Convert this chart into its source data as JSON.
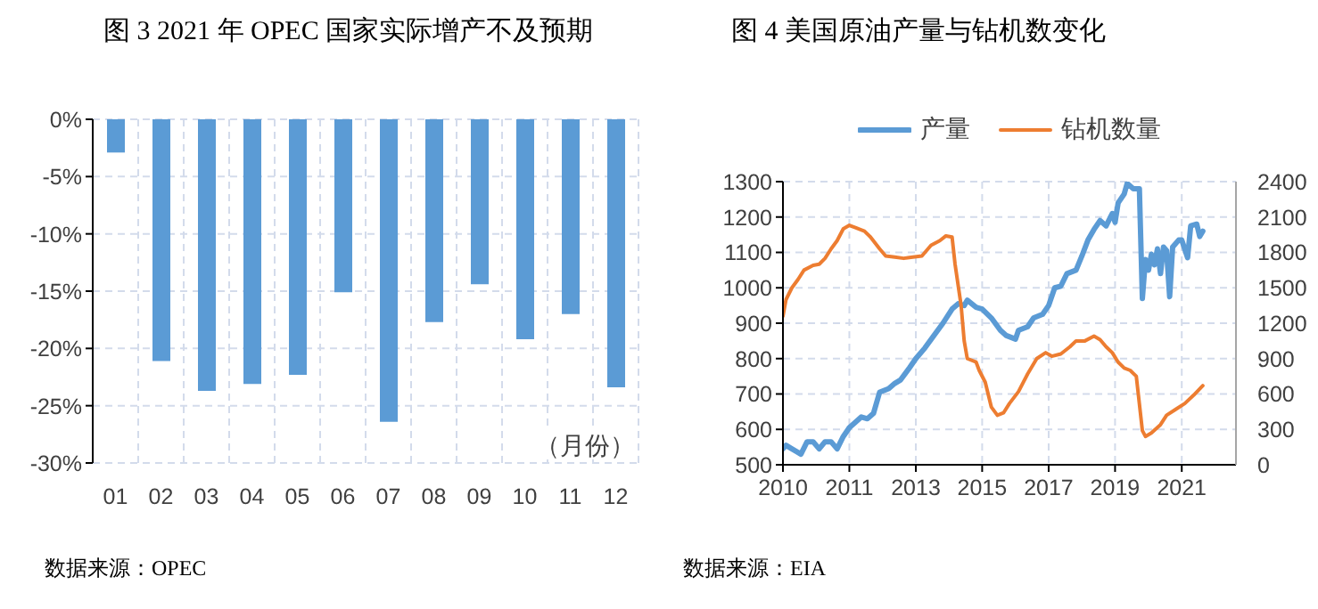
{
  "chart_data": [
    {
      "type": "bar",
      "title": "图 3 2021 年 OPEC 国家实际增产不及预期",
      "xlabel": "（月份）",
      "categories": [
        "01",
        "02",
        "03",
        "04",
        "05",
        "06",
        "07",
        "08",
        "09",
        "10",
        "11",
        "12"
      ],
      "values": [
        -2.9,
        -21.1,
        -23.7,
        -23.1,
        -22.3,
        -15.1,
        -26.4,
        -17.7,
        -14.4,
        -19.2,
        -17.0,
        -23.4
      ],
      "color": "#5b9bd5",
      "ylim": [
        -30,
        0
      ],
      "yticks": [
        {
          "value": 0,
          "label": "0%"
        },
        {
          "value": -5,
          "label": "-5%"
        },
        {
          "value": -10,
          "label": "-10%"
        },
        {
          "value": -15,
          "label": "-15%"
        },
        {
          "value": -20,
          "label": "-20%"
        },
        {
          "value": -25,
          "label": "-25%"
        },
        {
          "value": -30,
          "label": "-30%"
        }
      ],
      "grid": true,
      "annotations": [
        "数据来源：OPEC"
      ]
    },
    {
      "type": "line",
      "title": "图 4 美国原油产量与钻机数变化",
      "legend": "top",
      "grid": true,
      "xlim": [
        "2010-01",
        "2022-07"
      ],
      "xticks": [
        {
          "value": "2010-01",
          "label": "2010"
        },
        {
          "value": "2011-11",
          "label": "2011"
        },
        {
          "value": "2013-09",
          "label": "2013"
        },
        {
          "value": "2015-07",
          "label": "2015"
        },
        {
          "value": "2017-05",
          "label": "2017"
        },
        {
          "value": "2019-03",
          "label": "2019"
        },
        {
          "value": "2021-01",
          "label": "2021"
        }
      ],
      "ylim": [
        500,
        1300
      ],
      "yticks": [
        500,
        600,
        700,
        800,
        900,
        1000,
        1100,
        1200,
        1300
      ],
      "y2lim": [
        0,
        2400
      ],
      "y2ticks": [
        0,
        300,
        600,
        900,
        1200,
        1500,
        1800,
        2100,
        2400
      ],
      "series": [
        {
          "name": "产量",
          "color": "#5b9bd5",
          "x": [
            "2010-01",
            "2010-02",
            "2010-04",
            "2010-07",
            "2010-09",
            "2010-11",
            "2011-01",
            "2011-03",
            "2011-05",
            "2011-07",
            "2011-09",
            "2011-11",
            "2012-01",
            "2012-03",
            "2012-05",
            "2012-07",
            "2012-09",
            "2012-12",
            "2013-02",
            "2013-04",
            "2013-07",
            "2013-09",
            "2013-12",
            "2014-03",
            "2014-06",
            "2014-09",
            "2014-11",
            "2015-01",
            "2015-02",
            "2015-05",
            "2015-07",
            "2015-10",
            "2016-01",
            "2016-03",
            "2016-06",
            "2016-07",
            "2016-10",
            "2016-12",
            "2017-03",
            "2017-05",
            "2017-07",
            "2017-09",
            "2017-11",
            "2018-02",
            "2018-04",
            "2018-06",
            "2018-08",
            "2018-10",
            "2018-12",
            "2019-02",
            "2019-03",
            "2019-04",
            "2019-06",
            "2019-07",
            "2019-09",
            "2019-11",
            "2019-12",
            "2020-01",
            "2020-02",
            "2020-03",
            "2020-04",
            "2020-05",
            "2020-06",
            "2020-07",
            "2020-08",
            "2020-09",
            "2020-10",
            "2020-12",
            "2021-01",
            "2021-03",
            "2021-04",
            "2021-06",
            "2021-07",
            "2021-08"
          ],
          "values": [
            545,
            555,
            545,
            530,
            565,
            565,
            545,
            565,
            565,
            545,
            580,
            605,
            620,
            635,
            630,
            645,
            705,
            715,
            730,
            740,
            775,
            800,
            830,
            865,
            900,
            940,
            955,
            950,
            965,
            945,
            940,
            915,
            880,
            865,
            855,
            880,
            890,
            915,
            925,
            950,
            1000,
            1005,
            1040,
            1050,
            1090,
            1135,
            1165,
            1190,
            1175,
            1210,
            1185,
            1240,
            1265,
            1295,
            1280,
            1280,
            970,
            1080,
            1050,
            1095,
            1065,
            1110,
            1040,
            1115,
            1105,
            975,
            1115,
            1135,
            1135,
            1085,
            1175,
            1180,
            1145,
            1160
          ]
        },
        {
          "name": "钻机数量",
          "color": "#ed7d31",
          "axis": "y2",
          "x": [
            "2010-01",
            "2010-02",
            "2010-04",
            "2010-06",
            "2010-08",
            "2010-11",
            "2011-01",
            "2011-03",
            "2011-05",
            "2011-07",
            "2011-09",
            "2011-11",
            "2012-01",
            "2012-04",
            "2012-06",
            "2012-09",
            "2012-11",
            "2013-02",
            "2013-05",
            "2013-08",
            "2013-11",
            "2014-02",
            "2014-05",
            "2014-07",
            "2014-09",
            "2014-10",
            "2014-12",
            "2015-01",
            "2015-02",
            "2015-05",
            "2015-06",
            "2015-08",
            "2015-10",
            "2015-12",
            "2016-02",
            "2016-04",
            "2016-07",
            "2016-10",
            "2017-01",
            "2017-04",
            "2017-06",
            "2017-09",
            "2017-12",
            "2018-02",
            "2018-05",
            "2018-08",
            "2018-10",
            "2018-12",
            "2019-02",
            "2019-04",
            "2019-06",
            "2019-08",
            "2019-10",
            "2019-12",
            "2020-01",
            "2020-03",
            "2020-06",
            "2020-08",
            "2020-11",
            "2021-02",
            "2021-05",
            "2021-08"
          ],
          "values": [
            1260,
            1400,
            1500,
            1570,
            1650,
            1690,
            1700,
            1750,
            1830,
            1900,
            2000,
            2030,
            2010,
            1980,
            1930,
            1830,
            1770,
            1760,
            1750,
            1760,
            1770,
            1860,
            1900,
            1940,
            1930,
            1700,
            1350,
            1050,
            900,
            870,
            800,
            700,
            490,
            420,
            440,
            520,
            620,
            770,
            900,
            950,
            920,
            940,
            1000,
            1050,
            1050,
            1090,
            1060,
            1000,
            950,
            870,
            820,
            800,
            750,
            290,
            240,
            270,
            340,
            420,
            470,
            520,
            590,
            670
          ]
        }
      ],
      "annotations": [
        "数据来源：EIA"
      ]
    }
  ]
}
